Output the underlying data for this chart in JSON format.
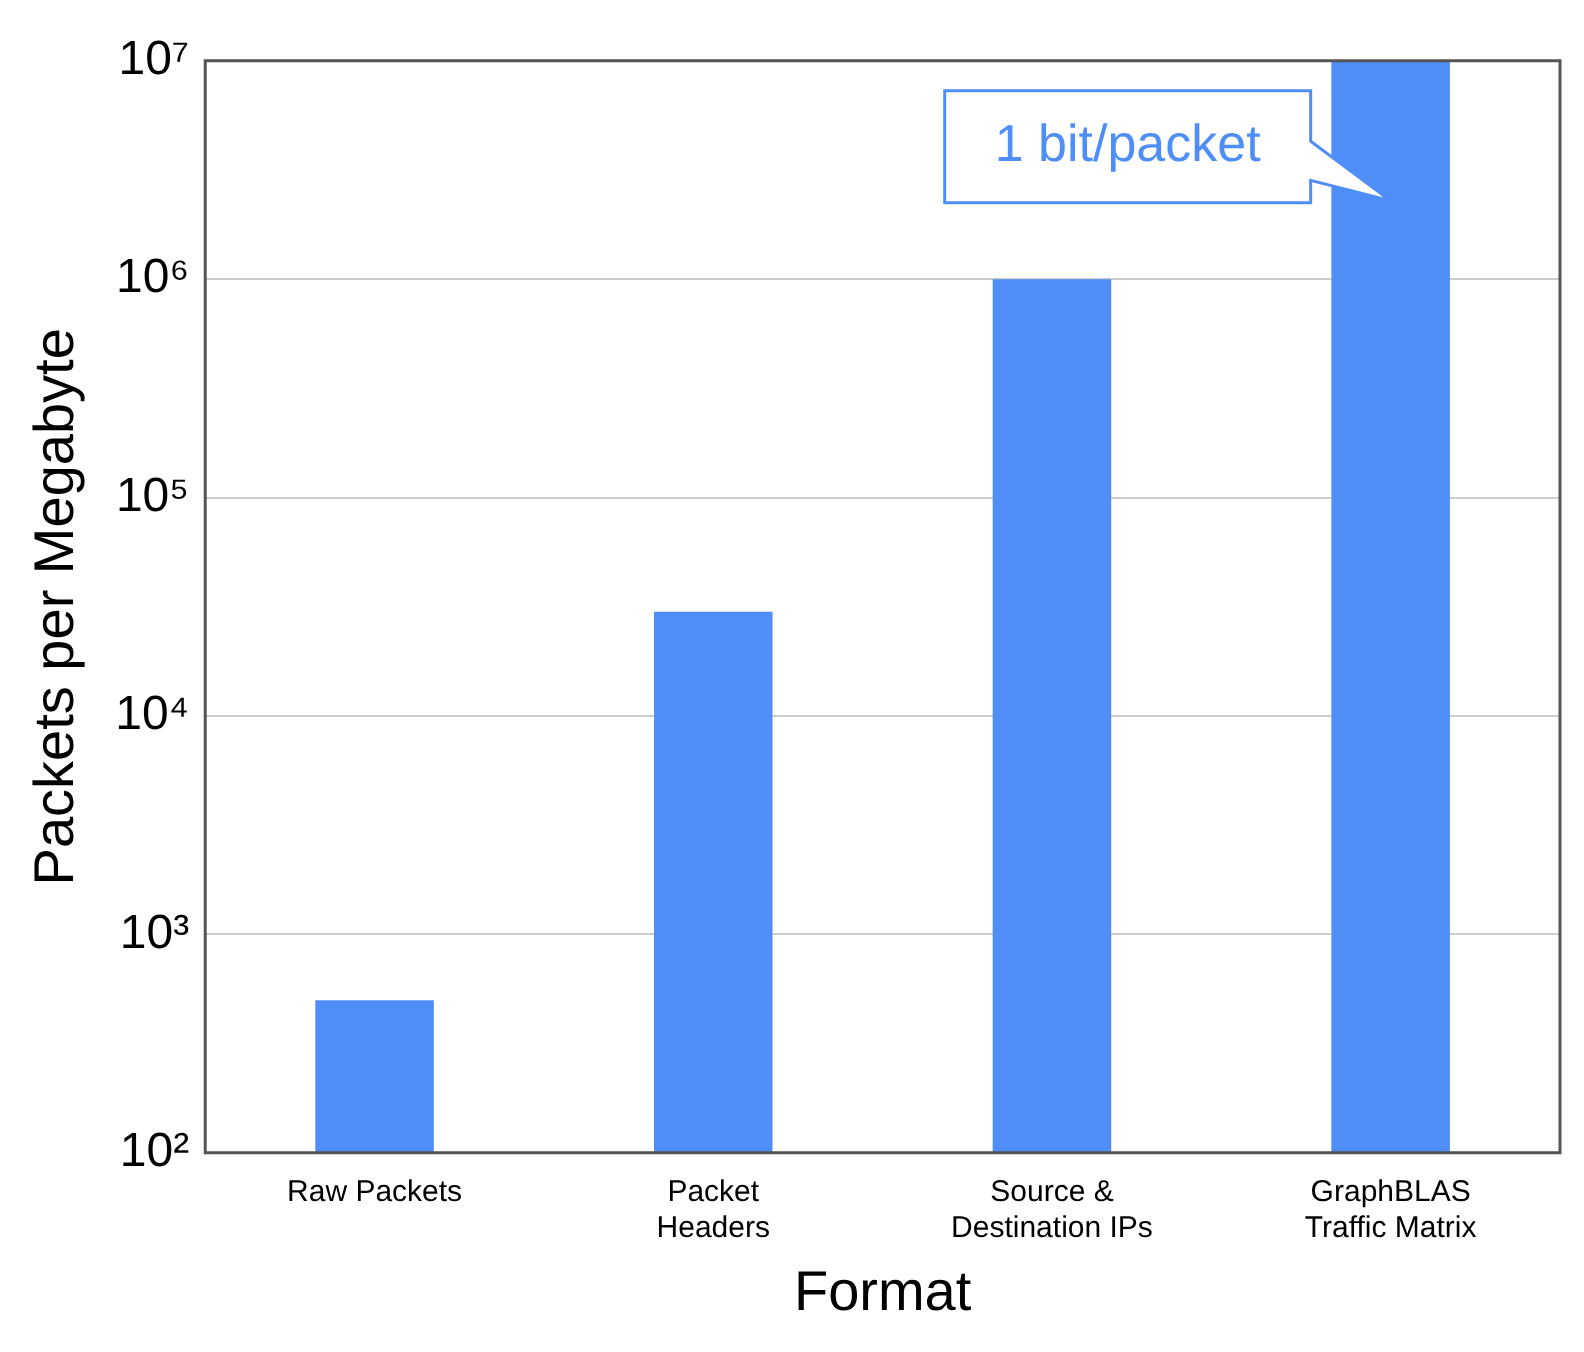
{
  "chart_data": {
    "type": "bar",
    "xlabel": "Format",
    "ylabel": "Packets per Megabyte",
    "categories": [
      "Raw Packets",
      "Packet\nHeaders",
      "Source &\nDestination IPs",
      "GraphBLAS\nTraffic Matrix"
    ],
    "values": [
      500,
      30000,
      1000000,
      10000000
    ],
    "color": "#4f8ef7",
    "log": "y",
    "ylim": [
      100,
      10000000
    ],
    "yticks": [
      {
        "value": 100,
        "label": "10²"
      },
      {
        "value": 1000,
        "label": "10³"
      },
      {
        "value": 10000,
        "label": "10⁴"
      },
      {
        "value": 100000,
        "label": "10⁵"
      },
      {
        "value": 1000000,
        "label": "10⁶"
      },
      {
        "value": 10000000,
        "label": "10⁷"
      }
    ],
    "grid": "y",
    "legend": false,
    "annotations": [
      "1 bit/packet"
    ]
  }
}
